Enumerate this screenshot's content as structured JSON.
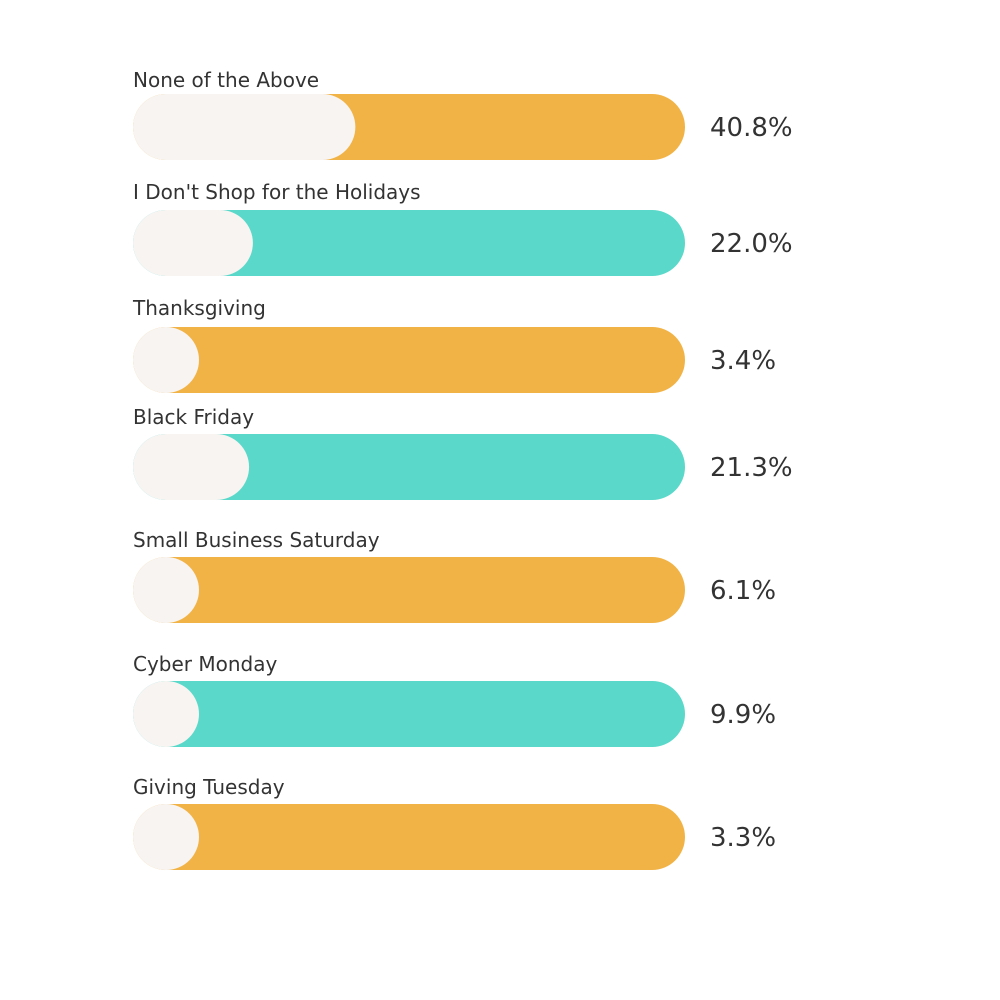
{
  "chart_data": {
    "type": "bar",
    "orientation": "horizontal",
    "title": "",
    "xlabel": "",
    "ylabel": "",
    "xlim": [
      0,
      100
    ],
    "grid": false,
    "legend": "none",
    "categories": [
      "None of the Above",
      "I Don't Shop for the Holidays",
      "Thanksgiving",
      "Black Friday",
      "Small Business Saturday",
      "Cyber Monday",
      "Giving Tuesday"
    ],
    "values": [
      40.8,
      22.0,
      3.4,
      21.3,
      6.1,
      9.9,
      3.3
    ],
    "value_labels": [
      "40.8%",
      "22.0%",
      "3.4%",
      "21.3%",
      "6.1%",
      "9.9%",
      "3.3%"
    ],
    "bar_colors": [
      "#F2B346",
      "#5AD8C9",
      "#F2B346",
      "#5AD8C9",
      "#F2B346",
      "#5AD8C9",
      "#F2B346"
    ],
    "track_color": "#F7F4F2"
  }
}
